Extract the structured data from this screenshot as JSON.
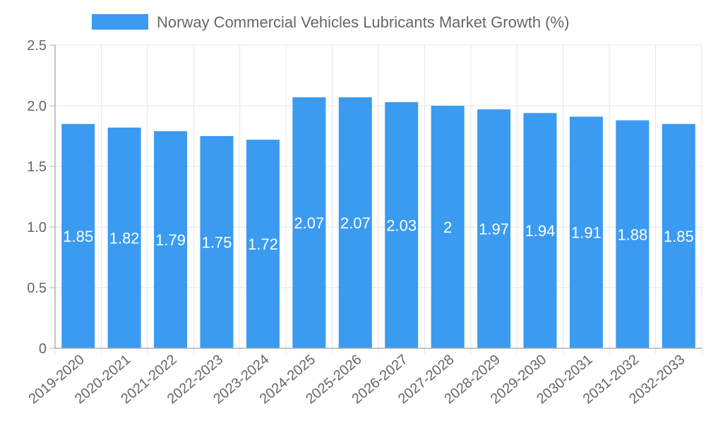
{
  "colors": {
    "bar": "#3a9bf0",
    "grid": "#e5e5e5",
    "axis": "#b0b0b0",
    "text": "#666666",
    "label": "#ffffff"
  },
  "chart_data": {
    "type": "bar",
    "categories": [
      "2019-2020",
      "2020-2021",
      "2021-2022",
      "2022-2023",
      "2023-2024",
      "2024-2025",
      "2025-2026",
      "2026-2027",
      "2027-2028",
      "2028-2029",
      "2029-2030",
      "2030-2031",
      "2031-2032",
      "2032-2033"
    ],
    "series": [
      {
        "name": "Norway Commercial Vehicles Lubricants Market Growth (%)",
        "values": [
          1.85,
          1.82,
          1.79,
          1.75,
          1.72,
          2.07,
          2.07,
          2.03,
          2,
          1.97,
          1.94,
          1.91,
          1.88,
          1.85
        ]
      }
    ],
    "data_labels": [
      "1.85",
      "1.82",
      "1.79",
      "1.75",
      "1.72",
      "2.07",
      "2.07",
      "2.03",
      "2",
      "1.97",
      "1.94",
      "1.91",
      "1.88",
      "1.85"
    ],
    "y_ticks": [
      "0",
      "0.5",
      "1.0",
      "1.5",
      "2.0",
      "2.5"
    ],
    "ylim": [
      0,
      2.5
    ],
    "grid": true,
    "legend_position": "top"
  }
}
